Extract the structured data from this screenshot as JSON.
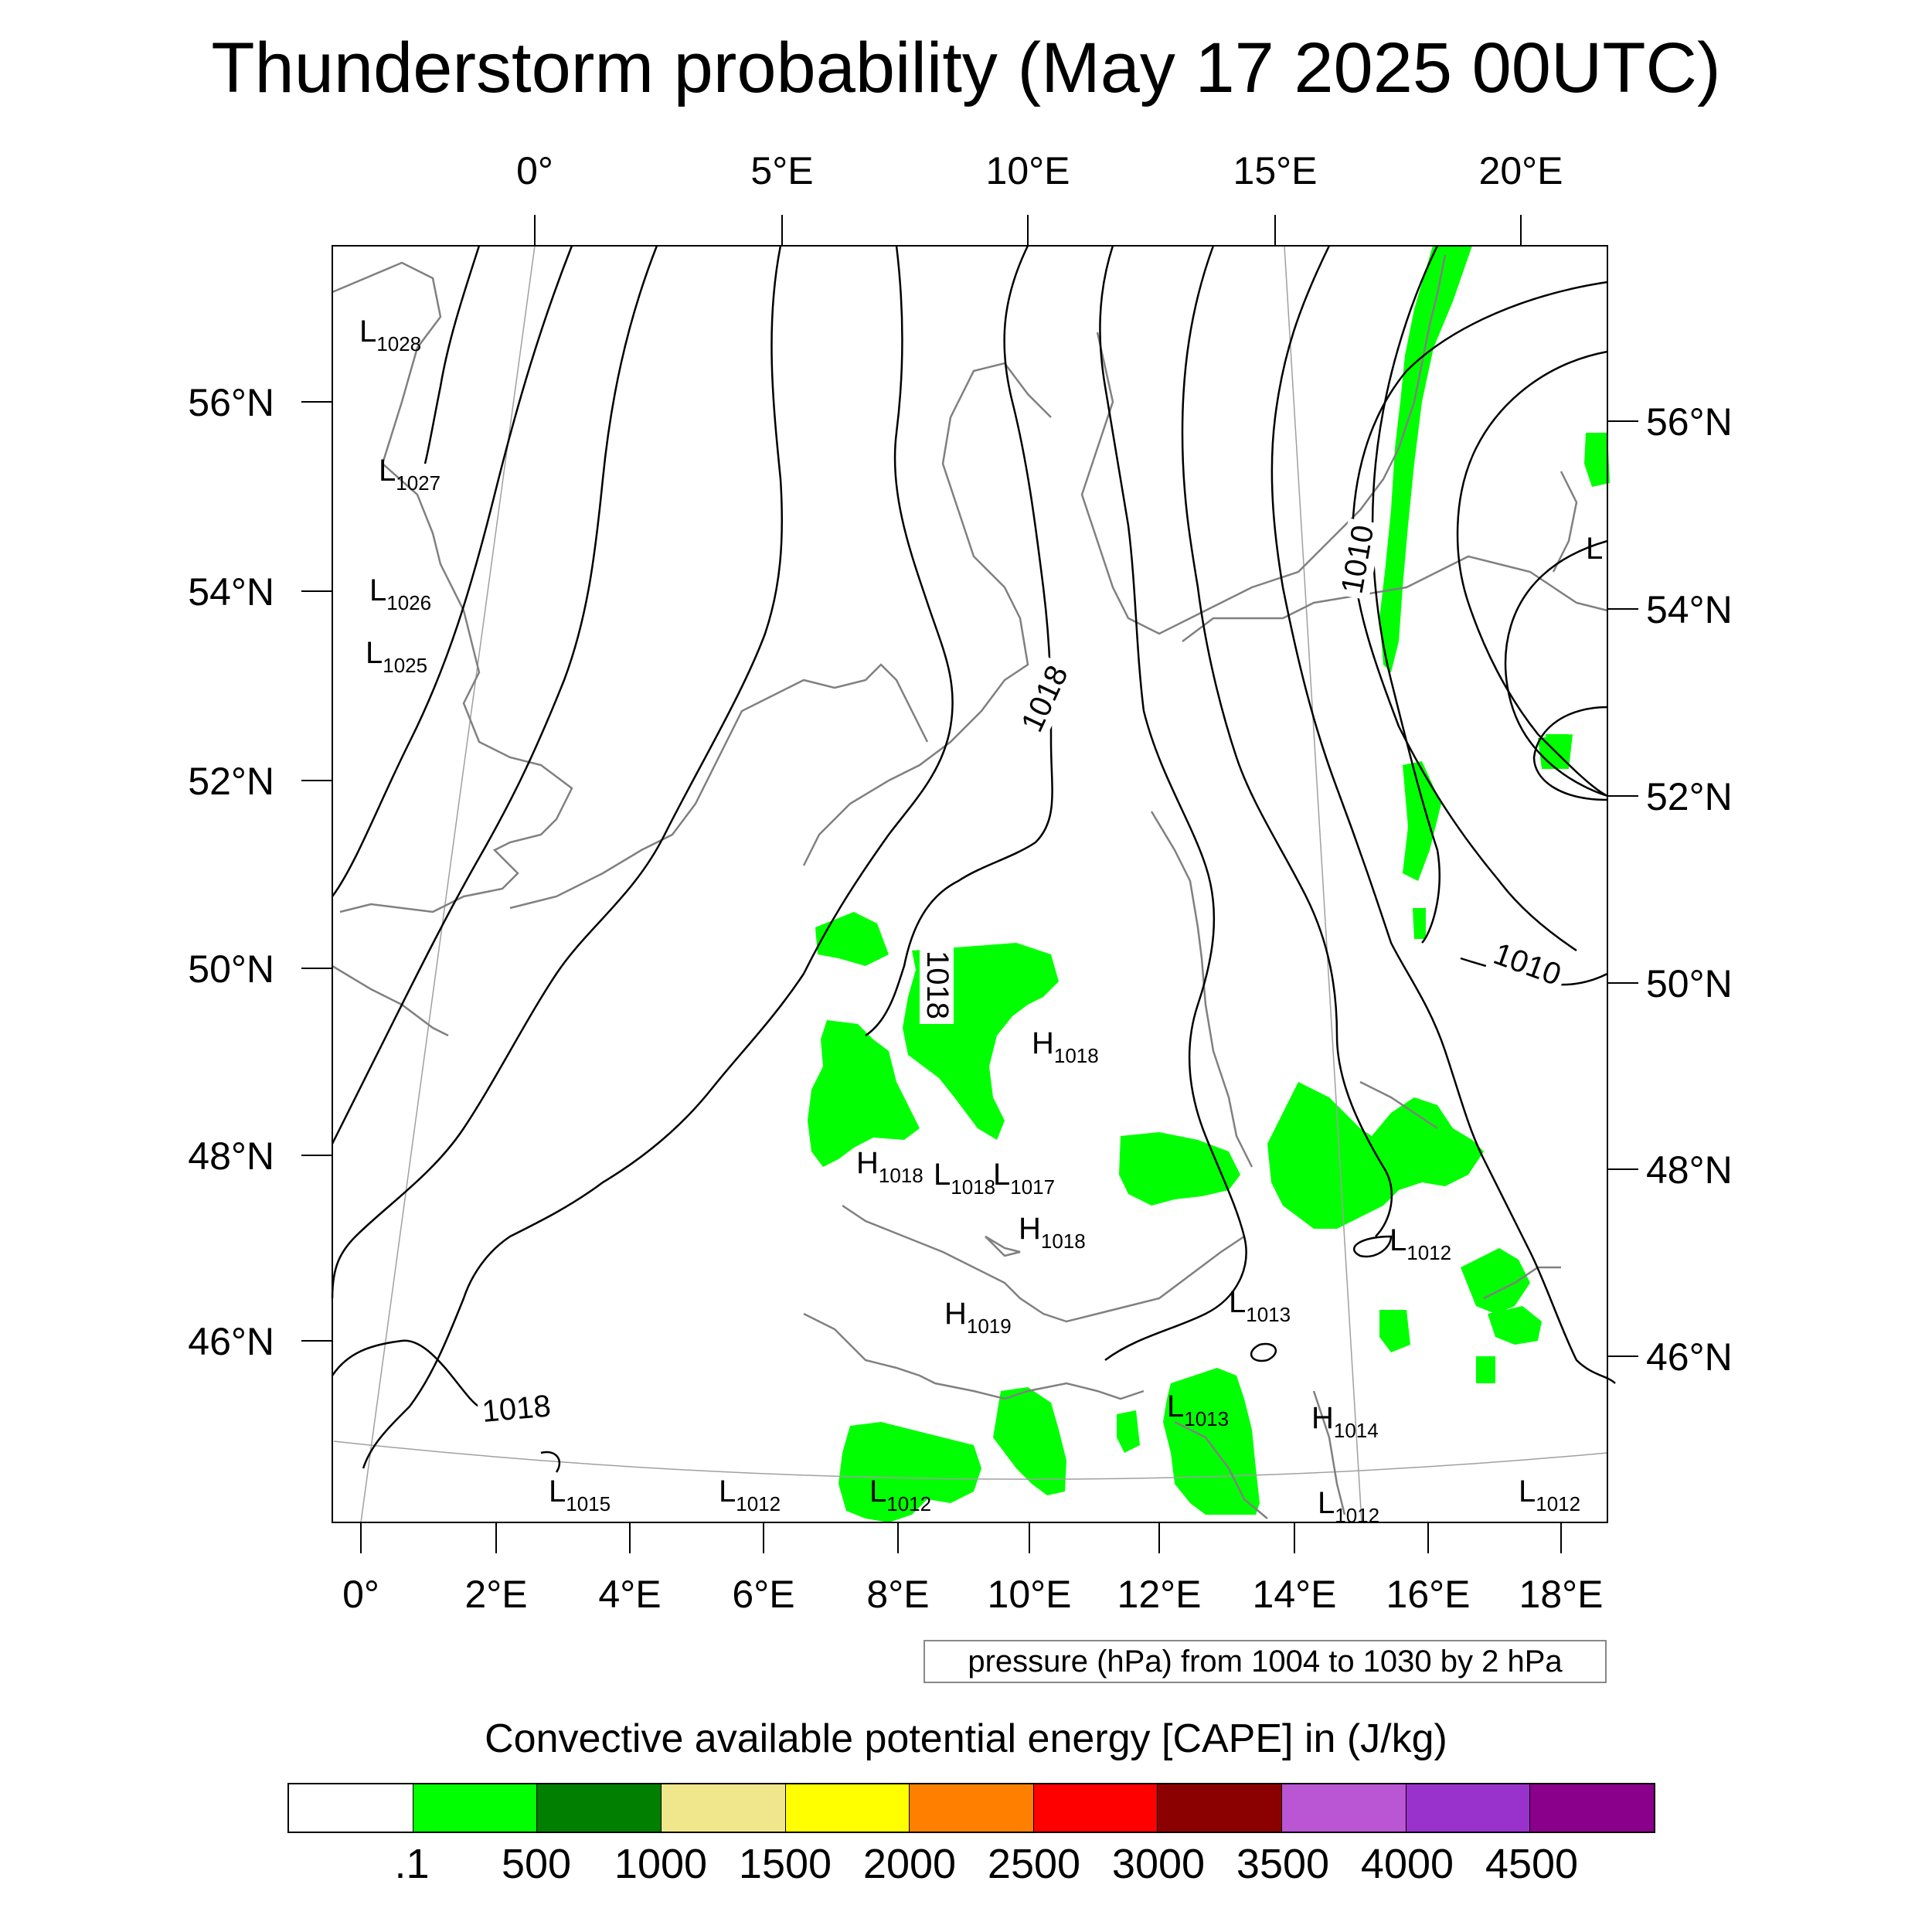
{
  "title": "Thunderstorm probability (May 17 2025 00UTC)",
  "top_lon_labels": [
    "0°",
    "5°E",
    "10°E",
    "15°E",
    "20°E"
  ],
  "bottom_lon_labels": [
    "0°",
    "2°E",
    "4°E",
    "6°E",
    "8°E",
    "10°E",
    "12°E",
    "14°E",
    "16°E",
    "18°E"
  ],
  "left_lat_labels": [
    "56°N",
    "54°N",
    "52°N",
    "50°N",
    "48°N",
    "46°N"
  ],
  "right_lat_labels": [
    "56°N",
    "54°N",
    "52°N",
    "50°N",
    "48°N",
    "46°N"
  ],
  "isobar_labels": [
    "1018",
    "1018",
    "1010",
    "1010",
    "1018"
  ],
  "pressure_centers": [
    {
      "type": "L",
      "value": "1028"
    },
    {
      "type": "L",
      "value": "1027"
    },
    {
      "type": "L",
      "value": "1026"
    },
    {
      "type": "L",
      "value": "1025"
    },
    {
      "type": "H",
      "value": "1018"
    },
    {
      "type": "H",
      "value": "1018"
    },
    {
      "type": "L",
      "value": "1018"
    },
    {
      "type": "L",
      "value": "1017"
    },
    {
      "type": "H",
      "value": "1018"
    },
    {
      "type": "H",
      "value": "1019"
    },
    {
      "type": "L",
      "value": "1013"
    },
    {
      "type": "L",
      "value": "1013"
    },
    {
      "type": "H",
      "value": "1014"
    },
    {
      "type": "L",
      "value": "1012"
    },
    {
      "type": "L",
      "value": "1015"
    },
    {
      "type": "L",
      "value": "1012"
    },
    {
      "type": "L",
      "value": "1012"
    },
    {
      "type": "L",
      "value": "1012"
    },
    {
      "type": "L",
      "value": "1012"
    },
    {
      "type": "L",
      "value": ""
    }
  ],
  "pressure_note": "pressure (hPa) from 1004 to 1030 by 2 hPa",
  "colorbar": {
    "title": "Convective available potential energy [CAPE] in (J/kg)",
    "colors": [
      "#ffffff",
      "#00ff00",
      "#007f00",
      "#f0e68c",
      "#ffff00",
      "#ff8000",
      "#ff0000",
      "#8b0000",
      "#ba55d3",
      "#9932cc",
      "#8b008b"
    ],
    "tick_labels": [
      ".1",
      "500",
      "1000",
      "1500",
      "2000",
      "2500",
      "3000",
      "3500",
      "4000",
      "4500"
    ]
  },
  "colors": {
    "cape_fill": "#00ff00",
    "isobar": "#000000",
    "coastline": "#808080",
    "graticule": "#a0a0a0"
  }
}
